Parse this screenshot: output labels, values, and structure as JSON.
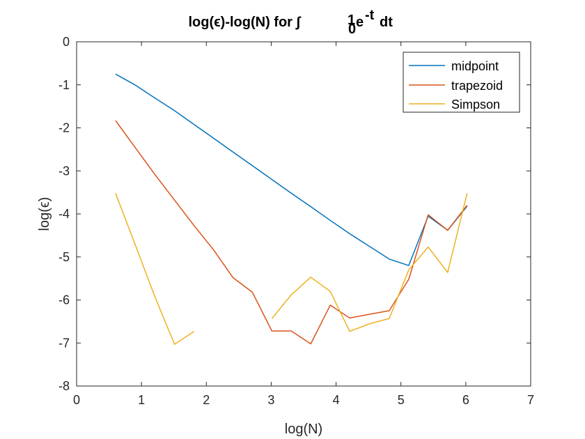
{
  "chart_data": {
    "type": "line",
    "title": "log(ϵ)-log(N) for ∫",
    "title_math": {
      "upper": "1",
      "lower": "0",
      "base": "e",
      "exponent": "-t",
      "tail": "dt"
    },
    "xlabel": "log(N)",
    "ylabel": "log(ϵ)",
    "xlim": [
      0,
      7
    ],
    "ylim": [
      -8,
      0
    ],
    "xticks": [
      0,
      1,
      2,
      3,
      4,
      5,
      6,
      7
    ],
    "yticks": [
      0,
      -1,
      -2,
      -3,
      -4,
      -5,
      -6,
      -7,
      -8
    ],
    "xtick_labels": [
      "0",
      "1",
      "2",
      "3",
      "4",
      "5",
      "6",
      "7"
    ],
    "ytick_labels": [
      "0",
      "-1",
      "-2",
      "-3",
      "-4",
      "-5",
      "-6",
      "-7",
      "-8"
    ],
    "grid": false,
    "legend_position": "top-right",
    "legend": [
      "midpoint",
      "trapezoid",
      "Simpson"
    ],
    "series": [
      {
        "name": "midpoint",
        "color": "#0072BD",
        "x": [
          0.6,
          0.9,
          1.2,
          1.51,
          1.81,
          2.11,
          2.41,
          2.71,
          3.01,
          3.31,
          3.61,
          3.91,
          4.21,
          4.52,
          4.82,
          5.12,
          5.42,
          5.72,
          6.02
        ],
        "y": [
          -0.75,
          -1.0,
          -1.3,
          -1.6,
          -1.92,
          -2.24,
          -2.56,
          -2.88,
          -3.2,
          -3.52,
          -3.83,
          -4.15,
          -4.46,
          -4.76,
          -5.05,
          -5.2,
          -4.05,
          -4.38,
          -3.82
        ]
      },
      {
        "name": "trapezoid",
        "color": "#D95319",
        "x": [
          0.6,
          0.9,
          1.2,
          1.51,
          1.81,
          2.11,
          2.41,
          2.71,
          3.01,
          3.31,
          3.61,
          3.91,
          4.21,
          4.52,
          4.82,
          5.12,
          5.42,
          5.72,
          6.02
        ],
        "y": [
          -1.83,
          -2.45,
          -3.07,
          -3.68,
          -4.27,
          -4.83,
          -5.48,
          -5.82,
          -6.72,
          -6.72,
          -7.02,
          -6.12,
          -6.42,
          -6.33,
          -6.25,
          -5.52,
          -4.02,
          -4.38,
          -3.8
        ]
      },
      {
        "name": "Simpson",
        "color": "#EDB120",
        "segments": [
          {
            "x": [
              0.6,
              0.9,
              1.2,
              1.51,
              1.81
            ],
            "y": [
              -3.52,
              -4.7,
              -5.9,
              -7.03,
              -6.73
            ]
          },
          {
            "x": [
              3.01,
              3.31,
              3.61,
              3.91,
              4.21,
              4.52,
              4.82,
              5.12,
              5.42,
              5.72,
              6.02
            ],
            "y": [
              -6.43,
              -5.88,
              -5.47,
              -5.8,
              -6.73,
              -6.55,
              -6.43,
              -5.3,
              -4.77,
              -5.36,
              -3.52
            ]
          }
        ]
      }
    ]
  }
}
